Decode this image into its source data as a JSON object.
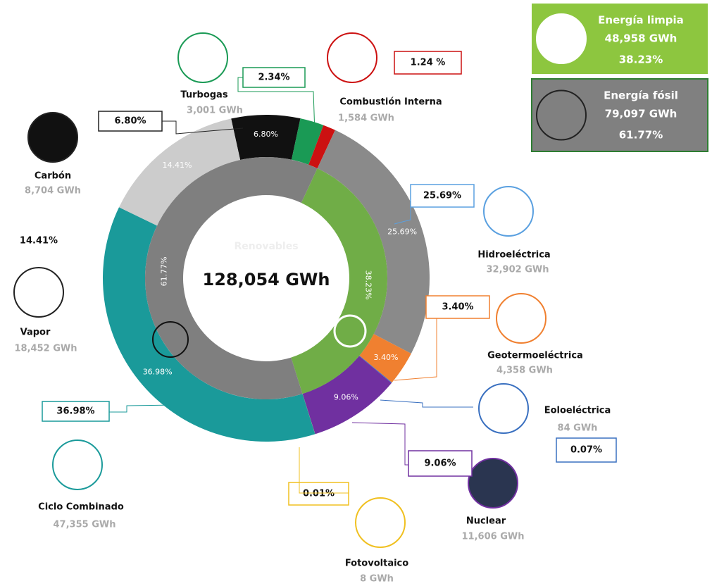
{
  "chart_data": {
    "type": "donut",
    "total": "128,054 GWh",
    "center_caption": "Renovables",
    "categories": [
      "Carbón",
      "Turbogas",
      "Combustión Interna",
      "Hidroeléctrica",
      "Geotermoeléctrica",
      "Eoloeléctrica",
      "Nuclear",
      "Fotovoltaico",
      "Ciclo Combinado",
      "Vapor"
    ],
    "values": [
      6.8,
      2.34,
      1.24,
      25.69,
      3.4,
      0.07,
      9.06,
      0.01,
      36.98,
      14.41
    ],
    "value_labels": [
      "6.80%",
      "2.34%",
      "1.24 %",
      "25.69%",
      "3.40%",
      "0.07%",
      "9.06%",
      "0.01%",
      "36.98%",
      "14.41%"
    ],
    "energy": [
      "8,704 GWh",
      "3,001 GWh",
      "1,584 GWh",
      "32,902 GWh",
      "4,358 GWh",
      "84 GWh",
      "11,606 GWh",
      "8 GWh",
      "47,355 GWh",
      "18,452 GWh"
    ],
    "colors": [
      "#111111",
      "#1a9a55",
      "#cc1111",
      "#8a8a8a",
      "#f08030",
      "#3a70c0",
      "#7030a0",
      "#f0c020",
      "#1a9a9a",
      "#cccccc"
    ],
    "inner_categories": [
      "Energía limpia",
      "Energía fósil"
    ],
    "inner_values": [
      38.23,
      61.77
    ],
    "inner_value_labels": [
      "38.23%",
      "61.77%"
    ],
    "inner_energy": [
      "48,958 GWh",
      "79,097 GWh"
    ],
    "inner_colors": [
      "#70ad47",
      "#7f7f7f"
    ]
  }
}
